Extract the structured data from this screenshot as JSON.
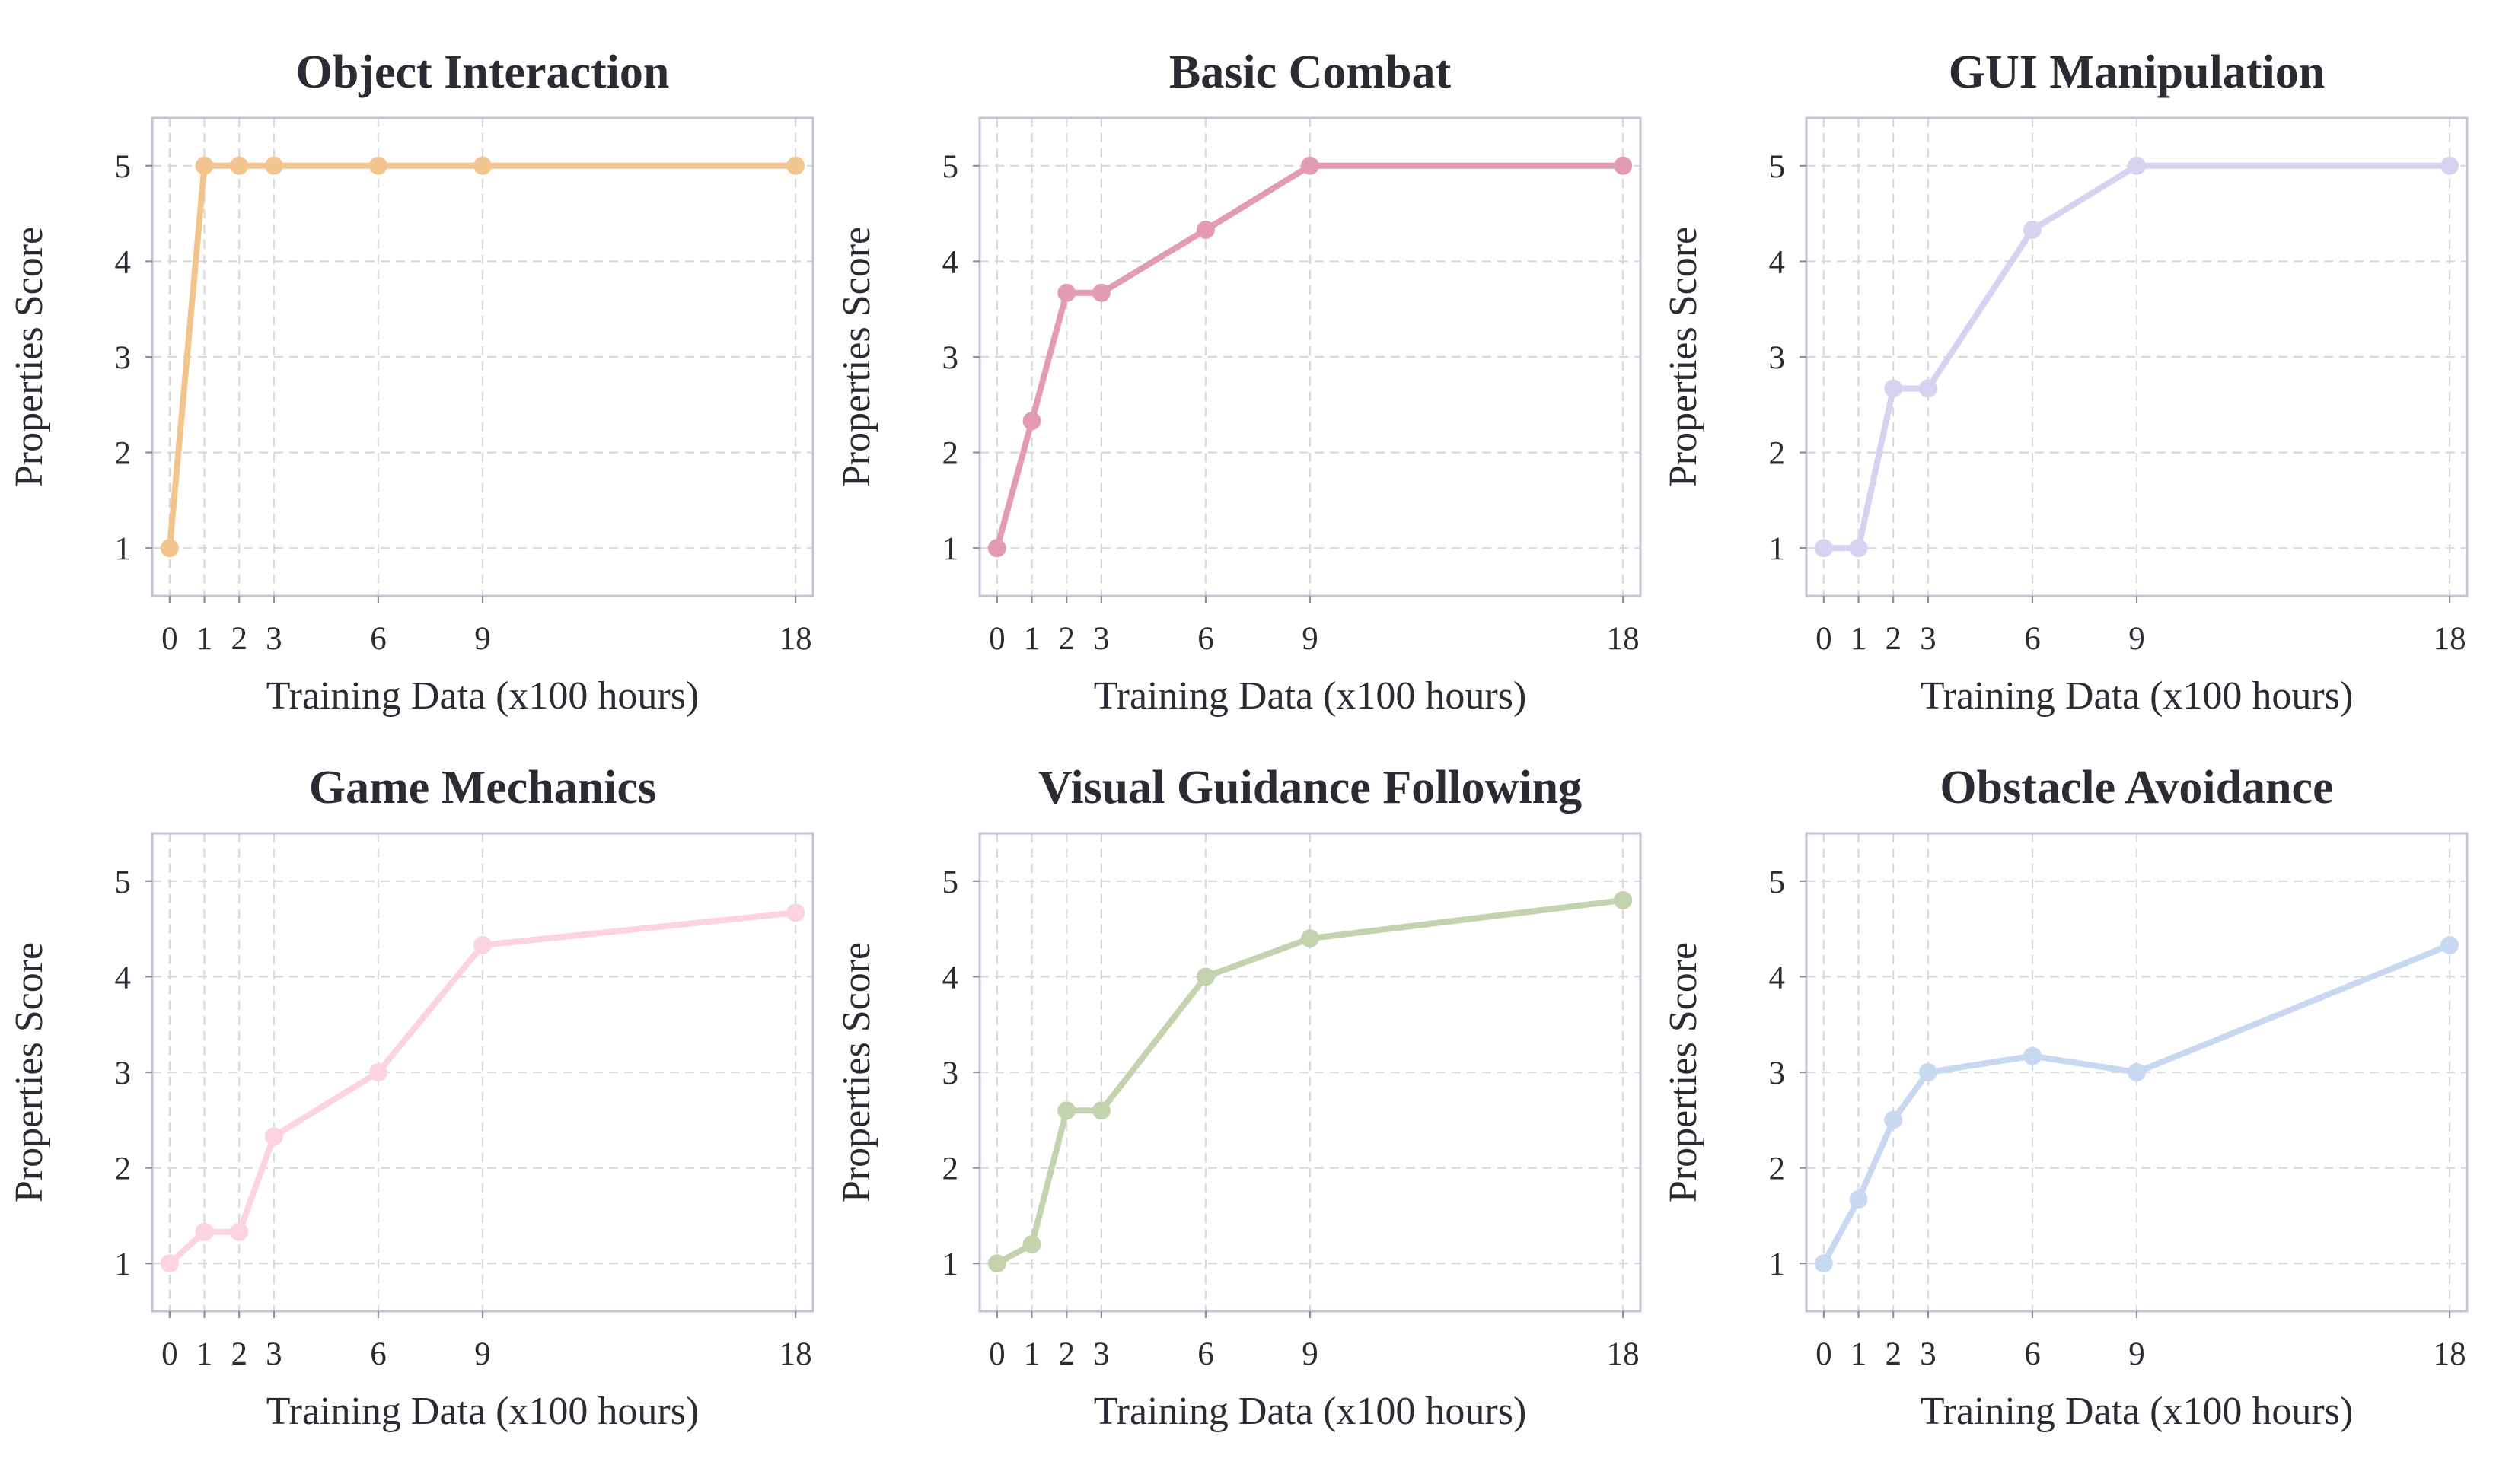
{
  "chart_data": [
    {
      "type": "line",
      "title": "Object Interaction",
      "xlabel": "Training Data (x100 hours)",
      "ylabel": "Properties Score",
      "x": [
        0,
        1,
        2,
        3,
        6,
        9,
        18
      ],
      "xticks": [
        "0",
        "1",
        "2",
        "3",
        "6",
        "9",
        "18"
      ],
      "yticks": [
        "1",
        "2",
        "3",
        "4",
        "5"
      ],
      "xlim": [
        -0.5,
        18.5
      ],
      "ylim": [
        0.5,
        5.5
      ],
      "values": [
        1,
        5,
        5,
        5,
        5,
        5,
        5
      ],
      "color": "#f2c58f",
      "grid": true
    },
    {
      "type": "line",
      "title": "Basic Combat",
      "xlabel": "Training Data (x100 hours)",
      "ylabel": "Properties Score",
      "x": [
        0,
        1,
        2,
        3,
        6,
        9,
        18
      ],
      "xticks": [
        "0",
        "1",
        "2",
        "3",
        "6",
        "9",
        "18"
      ],
      "yticks": [
        "1",
        "2",
        "3",
        "4",
        "5"
      ],
      "xlim": [
        -0.5,
        18.5
      ],
      "ylim": [
        0.5,
        5.5
      ],
      "values": [
        1,
        2.33,
        3.67,
        3.67,
        4.33,
        5,
        5
      ],
      "color": "#e29bb1",
      "grid": true
    },
    {
      "type": "line",
      "title": "GUI Manipulation",
      "xlabel": "Training Data (x100 hours)",
      "ylabel": "Properties Score",
      "x": [
        0,
        1,
        2,
        3,
        6,
        9,
        18
      ],
      "xticks": [
        "0",
        "1",
        "2",
        "3",
        "6",
        "9",
        "18"
      ],
      "yticks": [
        "1",
        "2",
        "3",
        "4",
        "5"
      ],
      "xlim": [
        -0.5,
        18.5
      ],
      "ylim": [
        0.5,
        5.5
      ],
      "values": [
        1,
        1,
        2.67,
        2.67,
        4.33,
        5,
        5
      ],
      "color": "#d6d2ef",
      "grid": true
    },
    {
      "type": "line",
      "title": "Game Mechanics",
      "xlabel": "Training Data (x100 hours)",
      "ylabel": "Properties Score",
      "x": [
        0,
        1,
        2,
        3,
        6,
        9,
        18
      ],
      "xticks": [
        "0",
        "1",
        "2",
        "3",
        "6",
        "9",
        "18"
      ],
      "yticks": [
        "1",
        "2",
        "3",
        "4",
        "5"
      ],
      "xlim": [
        -0.5,
        18.5
      ],
      "ylim": [
        0.5,
        5.5
      ],
      "values": [
        1,
        1.33,
        1.33,
        2.33,
        3,
        4.33,
        4.67
      ],
      "color": "#fcd3df",
      "grid": true
    },
    {
      "type": "line",
      "title": "Visual Guidance Following",
      "xlabel": "Training Data (x100 hours)",
      "ylabel": "Properties Score",
      "x": [
        0,
        1,
        2,
        3,
        6,
        9,
        18
      ],
      "xticks": [
        "0",
        "1",
        "2",
        "3",
        "6",
        "9",
        "18"
      ],
      "yticks": [
        "1",
        "2",
        "3",
        "4",
        "5"
      ],
      "xlim": [
        -0.5,
        18.5
      ],
      "ylim": [
        0.5,
        5.5
      ],
      "values": [
        1,
        1.2,
        2.6,
        2.6,
        4,
        4.4,
        4.8
      ],
      "color": "#c3d3ad",
      "grid": true
    },
    {
      "type": "line",
      "title": "Obstacle Avoidance",
      "xlabel": "Training Data (x100 hours)",
      "ylabel": "Properties Score",
      "x": [
        0,
        1,
        2,
        3,
        6,
        9,
        18
      ],
      "xticks": [
        "0",
        "1",
        "2",
        "3",
        "6",
        "9",
        "18"
      ],
      "yticks": [
        "1",
        "2",
        "3",
        "4",
        "5"
      ],
      "xlim": [
        -0.5,
        18.5
      ],
      "ylim": [
        0.5,
        5.5
      ],
      "values": [
        1,
        1.67,
        2.5,
        3,
        3.17,
        3,
        4.33
      ],
      "color": "#c7d8f1",
      "grid": true
    }
  ]
}
